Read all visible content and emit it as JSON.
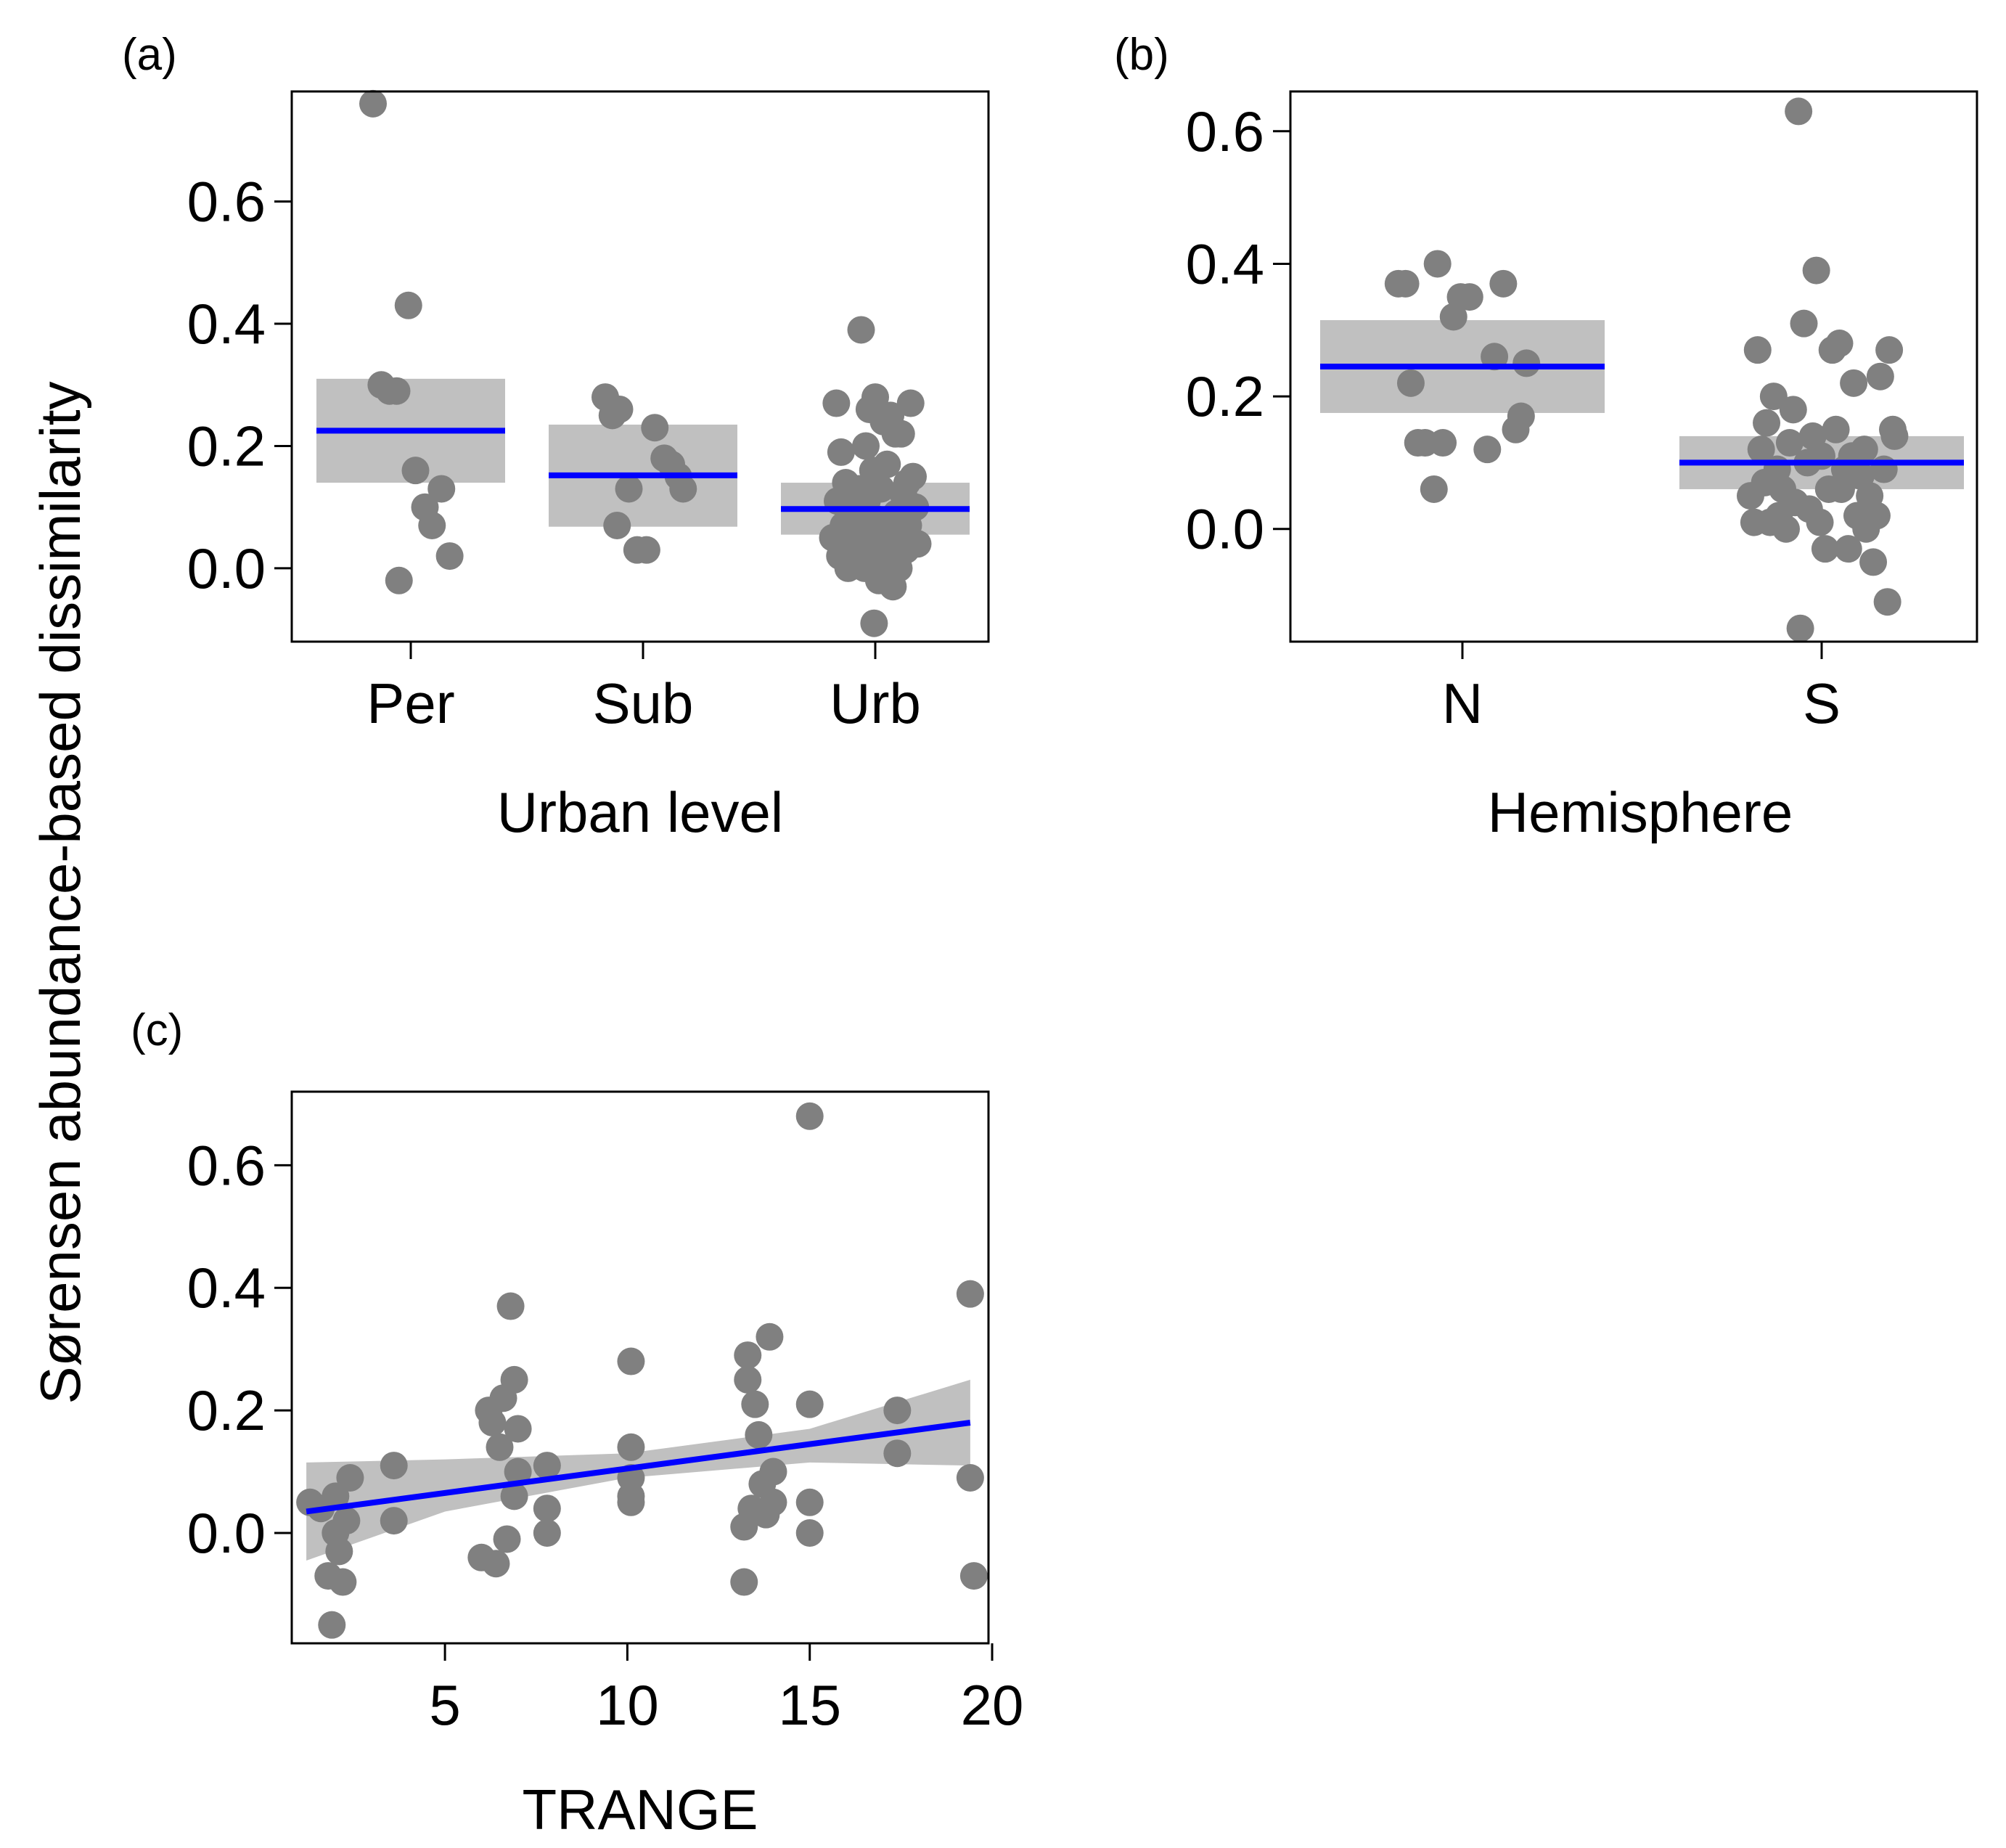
{
  "figure": {
    "shared_ylabel": "Sørensen abundance-based dissimilarity"
  },
  "chart_data": [
    {
      "id": "a",
      "panel_label": "(a)",
      "type": "scatter",
      "xlabel": "Urban level",
      "ylabel": "Sørensen abundance-based dissimilarity",
      "categories": [
        "Per",
        "Sub",
        "Urb"
      ],
      "ylim": [
        -0.12,
        0.78
      ],
      "yticks": [
        0.0,
        0.2,
        0.4,
        0.6
      ],
      "ytick_labels": [
        "0.0",
        "0.2",
        "0.4",
        "0.6"
      ],
      "point_color": "#808080",
      "fit_color": "#0000ff",
      "band_color": "#c0c0c0",
      "fits": [
        {
          "category": "Per",
          "mean": 0.225,
          "lower": 0.14,
          "upper": 0.31
        },
        {
          "category": "Sub",
          "mean": 0.152,
          "lower": 0.068,
          "upper": 0.235
        },
        {
          "category": "Urb",
          "mean": 0.097,
          "lower": 0.055,
          "upper": 0.14
        }
      ],
      "points": [
        {
          "category": "Per",
          "offset": -0.32,
          "y": 0.76
        },
        {
          "category": "Per",
          "offset": -0.25,
          "y": 0.3
        },
        {
          "category": "Per",
          "offset": -0.18,
          "y": 0.29
        },
        {
          "category": "Per",
          "offset": -0.12,
          "y": 0.29
        },
        {
          "category": "Per",
          "offset": -0.1,
          "y": -0.02
        },
        {
          "category": "Per",
          "offset": -0.02,
          "y": 0.43
        },
        {
          "category": "Per",
          "offset": 0.04,
          "y": 0.16
        },
        {
          "category": "Per",
          "offset": 0.12,
          "y": 0.1
        },
        {
          "category": "Per",
          "offset": 0.18,
          "y": 0.07
        },
        {
          "category": "Per",
          "offset": 0.26,
          "y": 0.13
        },
        {
          "category": "Per",
          "offset": 0.33,
          "y": 0.02
        },
        {
          "category": "Sub",
          "offset": -0.32,
          "y": 0.28
        },
        {
          "category": "Sub",
          "offset": -0.26,
          "y": 0.25
        },
        {
          "category": "Sub",
          "offset": -0.2,
          "y": 0.26
        },
        {
          "category": "Sub",
          "offset": -0.22,
          "y": 0.07
        },
        {
          "category": "Sub",
          "offset": -0.12,
          "y": 0.13
        },
        {
          "category": "Sub",
          "offset": -0.05,
          "y": 0.03
        },
        {
          "category": "Sub",
          "offset": 0.03,
          "y": 0.03
        },
        {
          "category": "Sub",
          "offset": 0.1,
          "y": 0.23
        },
        {
          "category": "Sub",
          "offset": 0.18,
          "y": 0.18
        },
        {
          "category": "Sub",
          "offset": 0.24,
          "y": 0.17
        },
        {
          "category": "Sub",
          "offset": 0.3,
          "y": 0.15
        },
        {
          "category": "Sub",
          "offset": 0.34,
          "y": 0.13
        },
        {
          "category": "Urb",
          "offset": -0.36,
          "y": 0.05
        },
        {
          "category": "Urb",
          "offset": -0.33,
          "y": 0.27
        },
        {
          "category": "Urb",
          "offset": -0.32,
          "y": 0.11
        },
        {
          "category": "Urb",
          "offset": -0.3,
          "y": 0.02
        },
        {
          "category": "Urb",
          "offset": -0.29,
          "y": 0.19
        },
        {
          "category": "Urb",
          "offset": -0.27,
          "y": 0.07
        },
        {
          "category": "Urb",
          "offset": -0.25,
          "y": 0.14
        },
        {
          "category": "Urb",
          "offset": -0.23,
          "y": 0.0
        },
        {
          "category": "Urb",
          "offset": -0.21,
          "y": 0.12
        },
        {
          "category": "Urb",
          "offset": -0.19,
          "y": 0.04
        },
        {
          "category": "Urb",
          "offset": -0.17,
          "y": 0.09
        },
        {
          "category": "Urb",
          "offset": -0.15,
          "y": 0.02
        },
        {
          "category": "Urb",
          "offset": -0.14,
          "y": 0.13
        },
        {
          "category": "Urb",
          "offset": -0.12,
          "y": 0.39
        },
        {
          "category": "Urb",
          "offset": -0.11,
          "y": 0.06
        },
        {
          "category": "Urb",
          "offset": -0.09,
          "y": 0.0
        },
        {
          "category": "Urb",
          "offset": -0.08,
          "y": 0.2
        },
        {
          "category": "Urb",
          "offset": -0.07,
          "y": 0.11
        },
        {
          "category": "Urb",
          "offset": -0.05,
          "y": 0.26
        },
        {
          "category": "Urb",
          "offset": -0.04,
          "y": 0.03
        },
        {
          "category": "Urb",
          "offset": -0.02,
          "y": 0.16
        },
        {
          "category": "Urb",
          "offset": -0.01,
          "y": -0.09
        },
        {
          "category": "Urb",
          "offset": 0.0,
          "y": 0.28
        },
        {
          "category": "Urb",
          "offset": 0.02,
          "y": 0.08
        },
        {
          "category": "Urb",
          "offset": 0.03,
          "y": -0.02
        },
        {
          "category": "Urb",
          "offset": 0.05,
          "y": 0.13
        },
        {
          "category": "Urb",
          "offset": 0.07,
          "y": 0.24
        },
        {
          "category": "Urb",
          "offset": 0.08,
          "y": 0.05
        },
        {
          "category": "Urb",
          "offset": 0.1,
          "y": 0.17
        },
        {
          "category": "Urb",
          "offset": 0.12,
          "y": 0.01
        },
        {
          "category": "Urb",
          "offset": 0.13,
          "y": 0.25
        },
        {
          "category": "Urb",
          "offset": 0.15,
          "y": -0.03
        },
        {
          "category": "Urb",
          "offset": 0.17,
          "y": 0.22
        },
        {
          "category": "Urb",
          "offset": 0.18,
          "y": 0.09
        },
        {
          "category": "Urb",
          "offset": 0.2,
          "y": 0.0
        },
        {
          "category": "Urb",
          "offset": 0.22,
          "y": 0.22
        },
        {
          "category": "Urb",
          "offset": 0.24,
          "y": 0.12
        },
        {
          "category": "Urb",
          "offset": 0.26,
          "y": 0.03
        },
        {
          "category": "Urb",
          "offset": 0.28,
          "y": 0.07
        },
        {
          "category": "Urb",
          "offset": 0.3,
          "y": 0.27
        },
        {
          "category": "Urb",
          "offset": 0.32,
          "y": 0.15
        },
        {
          "category": "Urb",
          "offset": 0.34,
          "y": 0.1
        },
        {
          "category": "Urb",
          "offset": 0.36,
          "y": 0.04
        },
        {
          "category": "Urb",
          "offset": -0.26,
          "y": 0.05
        },
        {
          "category": "Urb",
          "offset": 0.14,
          "y": 0.06
        },
        {
          "category": "Urb",
          "offset": 0.27,
          "y": 0.14
        }
      ]
    },
    {
      "id": "b",
      "panel_label": "(b)",
      "type": "scatter",
      "xlabel": "Hemisphere",
      "ylabel": "Sørensen abundance-based dissimilarity",
      "categories": [
        "N",
        "S"
      ],
      "ylim": [
        -0.17,
        0.66
      ],
      "yticks": [
        0.0,
        0.2,
        0.4,
        0.6
      ],
      "ytick_labels": [
        "0.0",
        "0.2",
        "0.4",
        "0.6"
      ],
      "point_color": "#808080",
      "fit_color": "#0000ff",
      "band_color": "#c0c0c0",
      "fits": [
        {
          "category": "N",
          "mean": 0.245,
          "lower": 0.175,
          "upper": 0.315
        },
        {
          "category": "S",
          "mean": 0.1,
          "lower": 0.06,
          "upper": 0.14
        }
      ],
      "points": [
        {
          "category": "N",
          "offset": -0.36,
          "y": 0.37
        },
        {
          "category": "N",
          "offset": -0.32,
          "y": 0.37
        },
        {
          "category": "N",
          "offset": -0.29,
          "y": 0.22
        },
        {
          "category": "N",
          "offset": -0.25,
          "y": 0.13
        },
        {
          "category": "N",
          "offset": -0.21,
          "y": 0.13
        },
        {
          "category": "N",
          "offset": -0.16,
          "y": 0.06
        },
        {
          "category": "N",
          "offset": -0.14,
          "y": 0.4
        },
        {
          "category": "N",
          "offset": -0.11,
          "y": 0.13
        },
        {
          "category": "N",
          "offset": -0.05,
          "y": 0.32
        },
        {
          "category": "N",
          "offset": -0.01,
          "y": 0.35
        },
        {
          "category": "N",
          "offset": 0.04,
          "y": 0.35
        },
        {
          "category": "N",
          "offset": 0.14,
          "y": 0.12
        },
        {
          "category": "N",
          "offset": 0.18,
          "y": 0.26
        },
        {
          "category": "N",
          "offset": 0.23,
          "y": 0.37
        },
        {
          "category": "N",
          "offset": 0.3,
          "y": 0.15
        },
        {
          "category": "N",
          "offset": 0.33,
          "y": 0.17
        },
        {
          "category": "N",
          "offset": 0.36,
          "y": 0.25
        },
        {
          "category": "S",
          "offset": -0.4,
          "y": 0.05
        },
        {
          "category": "S",
          "offset": -0.38,
          "y": 0.01
        },
        {
          "category": "S",
          "offset": -0.36,
          "y": 0.27
        },
        {
          "category": "S",
          "offset": -0.34,
          "y": 0.12
        },
        {
          "category": "S",
          "offset": -0.32,
          "y": 0.07
        },
        {
          "category": "S",
          "offset": -0.31,
          "y": 0.16
        },
        {
          "category": "S",
          "offset": -0.29,
          "y": 0.01
        },
        {
          "category": "S",
          "offset": -0.27,
          "y": 0.2
        },
        {
          "category": "S",
          "offset": -0.25,
          "y": 0.09
        },
        {
          "category": "S",
          "offset": -0.24,
          "y": 0.02
        },
        {
          "category": "S",
          "offset": -0.22,
          "y": 0.06
        },
        {
          "category": "S",
          "offset": -0.2,
          "y": 0.0
        },
        {
          "category": "S",
          "offset": -0.18,
          "y": 0.13
        },
        {
          "category": "S",
          "offset": -0.16,
          "y": 0.18
        },
        {
          "category": "S",
          "offset": -0.15,
          "y": 0.04
        },
        {
          "category": "S",
          "offset": -0.13,
          "y": 0.63
        },
        {
          "category": "S",
          "offset": -0.12,
          "y": -0.15
        },
        {
          "category": "S",
          "offset": -0.1,
          "y": 0.31
        },
        {
          "category": "S",
          "offset": -0.08,
          "y": 0.1
        },
        {
          "category": "S",
          "offset": -0.07,
          "y": 0.03
        },
        {
          "category": "S",
          "offset": -0.05,
          "y": 0.14
        },
        {
          "category": "S",
          "offset": -0.03,
          "y": 0.39
        },
        {
          "category": "S",
          "offset": -0.01,
          "y": 0.01
        },
        {
          "category": "S",
          "offset": 0.0,
          "y": 0.11
        },
        {
          "category": "S",
          "offset": 0.02,
          "y": -0.03
        },
        {
          "category": "S",
          "offset": 0.04,
          "y": 0.06
        },
        {
          "category": "S",
          "offset": 0.06,
          "y": 0.27
        },
        {
          "category": "S",
          "offset": 0.08,
          "y": 0.15
        },
        {
          "category": "S",
          "offset": 0.1,
          "y": 0.28
        },
        {
          "category": "S",
          "offset": 0.11,
          "y": 0.06
        },
        {
          "category": "S",
          "offset": 0.13,
          "y": 0.09
        },
        {
          "category": "S",
          "offset": 0.15,
          "y": -0.03
        },
        {
          "category": "S",
          "offset": 0.17,
          "y": 0.11
        },
        {
          "category": "S",
          "offset": 0.18,
          "y": 0.22
        },
        {
          "category": "S",
          "offset": 0.2,
          "y": 0.02
        },
        {
          "category": "S",
          "offset": 0.22,
          "y": 0.08
        },
        {
          "category": "S",
          "offset": 0.24,
          "y": 0.12
        },
        {
          "category": "S",
          "offset": 0.25,
          "y": 0.0
        },
        {
          "category": "S",
          "offset": 0.27,
          "y": 0.05
        },
        {
          "category": "S",
          "offset": 0.29,
          "y": -0.05
        },
        {
          "category": "S",
          "offset": 0.31,
          "y": 0.02
        },
        {
          "category": "S",
          "offset": 0.33,
          "y": 0.23
        },
        {
          "category": "S",
          "offset": 0.35,
          "y": 0.09
        },
        {
          "category": "S",
          "offset": 0.37,
          "y": -0.11
        },
        {
          "category": "S",
          "offset": 0.38,
          "y": 0.27
        },
        {
          "category": "S",
          "offset": 0.4,
          "y": 0.15
        },
        {
          "category": "S",
          "offset": 0.41,
          "y": 0.14
        }
      ]
    },
    {
      "id": "c",
      "panel_label": "(c)",
      "type": "scatter",
      "xlabel": "TRANGE",
      "ylabel": "Sørensen abundance-based dissimilarity",
      "xlim": [
        0.8,
        19.9
      ],
      "ylim": [
        -0.18,
        0.72
      ],
      "xticks": [
        5,
        10,
        15,
        20
      ],
      "xtick_labels": [
        "5",
        "10",
        "15",
        "20"
      ],
      "yticks": [
        0.0,
        0.2,
        0.4,
        0.6
      ],
      "ytick_labels": [
        "0.0",
        "0.2",
        "0.4",
        "0.6"
      ],
      "point_color": "#808080",
      "fit_color": "#0000ff",
      "band_color": "#c0c0c0",
      "fit_line": {
        "x": [
          1.2,
          19.4
        ],
        "y": [
          0.035,
          0.18
        ]
      },
      "ci_band": {
        "x": [
          1.2,
          5.0,
          10.0,
          15.0,
          19.4
        ],
        "lower": [
          -0.045,
          0.035,
          0.09,
          0.115,
          0.11
        ],
        "upper": [
          0.115,
          0.12,
          0.13,
          0.17,
          0.25
        ]
      },
      "points": [
        {
          "x": 1.3,
          "y": 0.05
        },
        {
          "x": 1.6,
          "y": 0.04
        },
        {
          "x": 1.8,
          "y": -0.07
        },
        {
          "x": 1.9,
          "y": -0.15
        },
        {
          "x": 2.0,
          "y": 0.0
        },
        {
          "x": 2.0,
          "y": 0.06
        },
        {
          "x": 2.1,
          "y": -0.03
        },
        {
          "x": 2.2,
          "y": -0.08
        },
        {
          "x": 2.3,
          "y": 0.02
        },
        {
          "x": 2.4,
          "y": 0.09
        },
        {
          "x": 3.6,
          "y": 0.11
        },
        {
          "x": 3.6,
          "y": 0.02
        },
        {
          "x": 6.0,
          "y": -0.04
        },
        {
          "x": 6.2,
          "y": 0.2
        },
        {
          "x": 6.3,
          "y": 0.18
        },
        {
          "x": 6.4,
          "y": -0.05
        },
        {
          "x": 6.5,
          "y": 0.14
        },
        {
          "x": 6.6,
          "y": 0.22
        },
        {
          "x": 6.7,
          "y": -0.01
        },
        {
          "x": 6.8,
          "y": 0.37
        },
        {
          "x": 6.9,
          "y": 0.25
        },
        {
          "x": 6.9,
          "y": 0.06
        },
        {
          "x": 7.0,
          "y": 0.17
        },
        {
          "x": 7.0,
          "y": 0.1
        },
        {
          "x": 7.8,
          "y": 0.11
        },
        {
          "x": 7.8,
          "y": 0.04
        },
        {
          "x": 7.8,
          "y": 0.0
        },
        {
          "x": 10.1,
          "y": 0.28
        },
        {
          "x": 10.1,
          "y": 0.14
        },
        {
          "x": 10.1,
          "y": 0.09
        },
        {
          "x": 10.1,
          "y": 0.05
        },
        {
          "x": 10.1,
          "y": 0.06
        },
        {
          "x": 13.2,
          "y": -0.08
        },
        {
          "x": 13.2,
          "y": 0.01
        },
        {
          "x": 13.3,
          "y": 0.29
        },
        {
          "x": 13.3,
          "y": 0.25
        },
        {
          "x": 13.4,
          "y": 0.04
        },
        {
          "x": 13.5,
          "y": 0.21
        },
        {
          "x": 13.6,
          "y": 0.16
        },
        {
          "x": 13.7,
          "y": 0.08
        },
        {
          "x": 13.8,
          "y": 0.03
        },
        {
          "x": 13.9,
          "y": 0.32
        },
        {
          "x": 14.0,
          "y": 0.1
        },
        {
          "x": 14.0,
          "y": 0.05
        },
        {
          "x": 15.0,
          "y": 0.68
        },
        {
          "x": 15.0,
          "y": 0.21
        },
        {
          "x": 15.0,
          "y": 0.05
        },
        {
          "x": 15.0,
          "y": 0.0
        },
        {
          "x": 17.4,
          "y": 0.2
        },
        {
          "x": 17.4,
          "y": 0.13
        },
        {
          "x": 19.4,
          "y": 0.39
        },
        {
          "x": 19.4,
          "y": 0.09
        },
        {
          "x": 19.5,
          "y": -0.07
        }
      ]
    }
  ]
}
